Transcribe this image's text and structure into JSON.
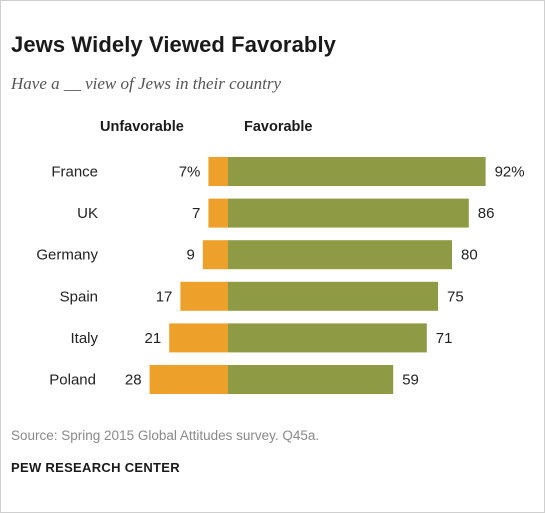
{
  "header": {
    "title": "Jews Widely Viewed Favorably",
    "subtitle": "Have a __ view of Jews in their country"
  },
  "legend": {
    "unfavorable": "Unfavorable",
    "favorable": "Favorable"
  },
  "colors": {
    "unfavorable": "#EDA12A",
    "favorable": "#8E9A44"
  },
  "chart_data": {
    "type": "bar",
    "title": "Jews Widely Viewed Favorably",
    "subtitle": "Have a __ view of Jews in their country",
    "categories": [
      "France",
      "UK",
      "Germany",
      "Spain",
      "Italy",
      "Poland"
    ],
    "series": [
      {
        "name": "Unfavorable",
        "values": [
          7,
          7,
          9,
          17,
          21,
          28
        ],
        "labels": [
          "7%",
          "7",
          "9",
          "17",
          "21",
          "28"
        ]
      },
      {
        "name": "Favorable",
        "values": [
          92,
          86,
          80,
          75,
          71,
          59
        ],
        "labels": [
          "92%",
          "86",
          "80",
          "75",
          "71",
          "59"
        ]
      }
    ],
    "xlim": [
      -28,
      92
    ],
    "grid": false,
    "legend_position": "top"
  },
  "footer": {
    "source": "Source: Spring 2015 Global Attitudes survey. Q45a.",
    "credit": "PEW RESEARCH CENTER"
  }
}
